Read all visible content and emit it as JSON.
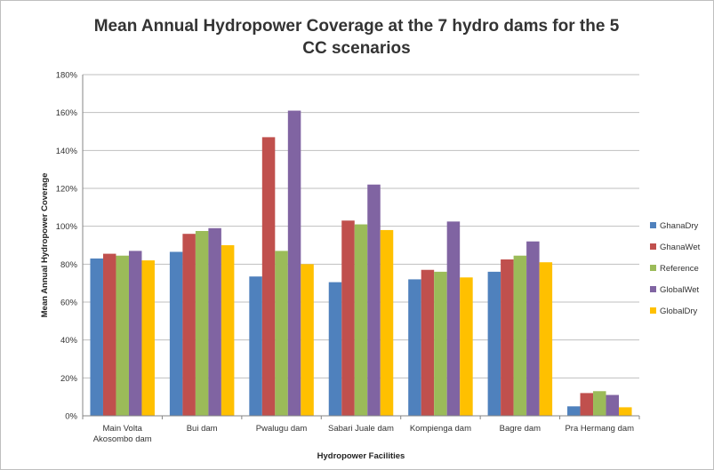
{
  "chart_data": {
    "type": "bar",
    "title": "Mean Annual Hydropower Coverage at the 7 hydro dams for the 5 CC scenarios",
    "xlabel": "Hydropower Facilities",
    "ylabel": "Mean Annual Hydropower Coverage",
    "categories": [
      [
        "Main Volta",
        "Akosombo dam"
      ],
      [
        "Bui dam"
      ],
      [
        "Pwalugu dam"
      ],
      [
        "Sabari Juale dam"
      ],
      [
        "Kompienga dam"
      ],
      [
        "Bagre dam"
      ],
      [
        "Pra Hermang dam"
      ]
    ],
    "ylim": [
      0,
      180
    ],
    "yticks": [
      0,
      20,
      40,
      60,
      80,
      100,
      120,
      140,
      160,
      180
    ],
    "ytick_labels": [
      "0%",
      "20%",
      "40%",
      "60%",
      "80%",
      "100%",
      "120%",
      "140%",
      "160%",
      "180%"
    ],
    "grid": true,
    "legend_position": "right",
    "series": [
      {
        "name": "GhanaDry",
        "color": "#4f81bd",
        "values": [
          83,
          86.5,
          73.5,
          70.5,
          72,
          76,
          5
        ]
      },
      {
        "name": "GhanaWet",
        "color": "#c0504d",
        "values": [
          85.5,
          96,
          147,
          103,
          77,
          82.5,
          12
        ]
      },
      {
        "name": "Reference",
        "color": "#9bbb59",
        "values": [
          84.5,
          97.5,
          87,
          101,
          76,
          84.5,
          13
        ]
      },
      {
        "name": "GlobalWet",
        "color": "#8064a2",
        "values": [
          87,
          99,
          161,
          122,
          102.5,
          92,
          11
        ]
      },
      {
        "name": "GlobalDry",
        "color": "#ffc000",
        "values": [
          82,
          90,
          80,
          98,
          73,
          81,
          4.5
        ]
      }
    ]
  }
}
